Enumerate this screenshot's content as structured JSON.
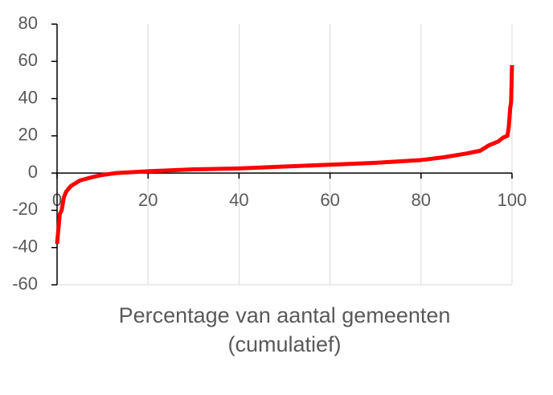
{
  "chart_data": {
    "type": "line",
    "x_label": "Percentage van aantal gemeenten (cumulatief)",
    "xlim": [
      0,
      100
    ],
    "xticks": [
      0,
      20,
      40,
      60,
      80,
      100
    ],
    "ylim": [
      -60,
      80
    ],
    "yticks": [
      -60,
      -40,
      -20,
      0,
      20,
      40,
      60,
      80
    ],
    "grid": "x",
    "series": [
      {
        "color": "#ff0000",
        "x": [
          0,
          0.3,
          0.6,
          1,
          1.5,
          2,
          3,
          5,
          8,
          10,
          13,
          20,
          30,
          40,
          50,
          60,
          70,
          80,
          85,
          90,
          93,
          95,
          97,
          98,
          99,
          99.3,
          99.6,
          99.8,
          100
        ],
        "values": [
          -38,
          -30,
          -22,
          -20,
          -13,
          -10,
          -7,
          -4,
          -2,
          -1,
          0,
          1,
          2,
          2.5,
          3.5,
          4.5,
          5.5,
          7,
          8.5,
          10.5,
          12,
          15,
          17,
          19,
          20,
          25,
          35,
          38,
          58
        ]
      }
    ]
  }
}
